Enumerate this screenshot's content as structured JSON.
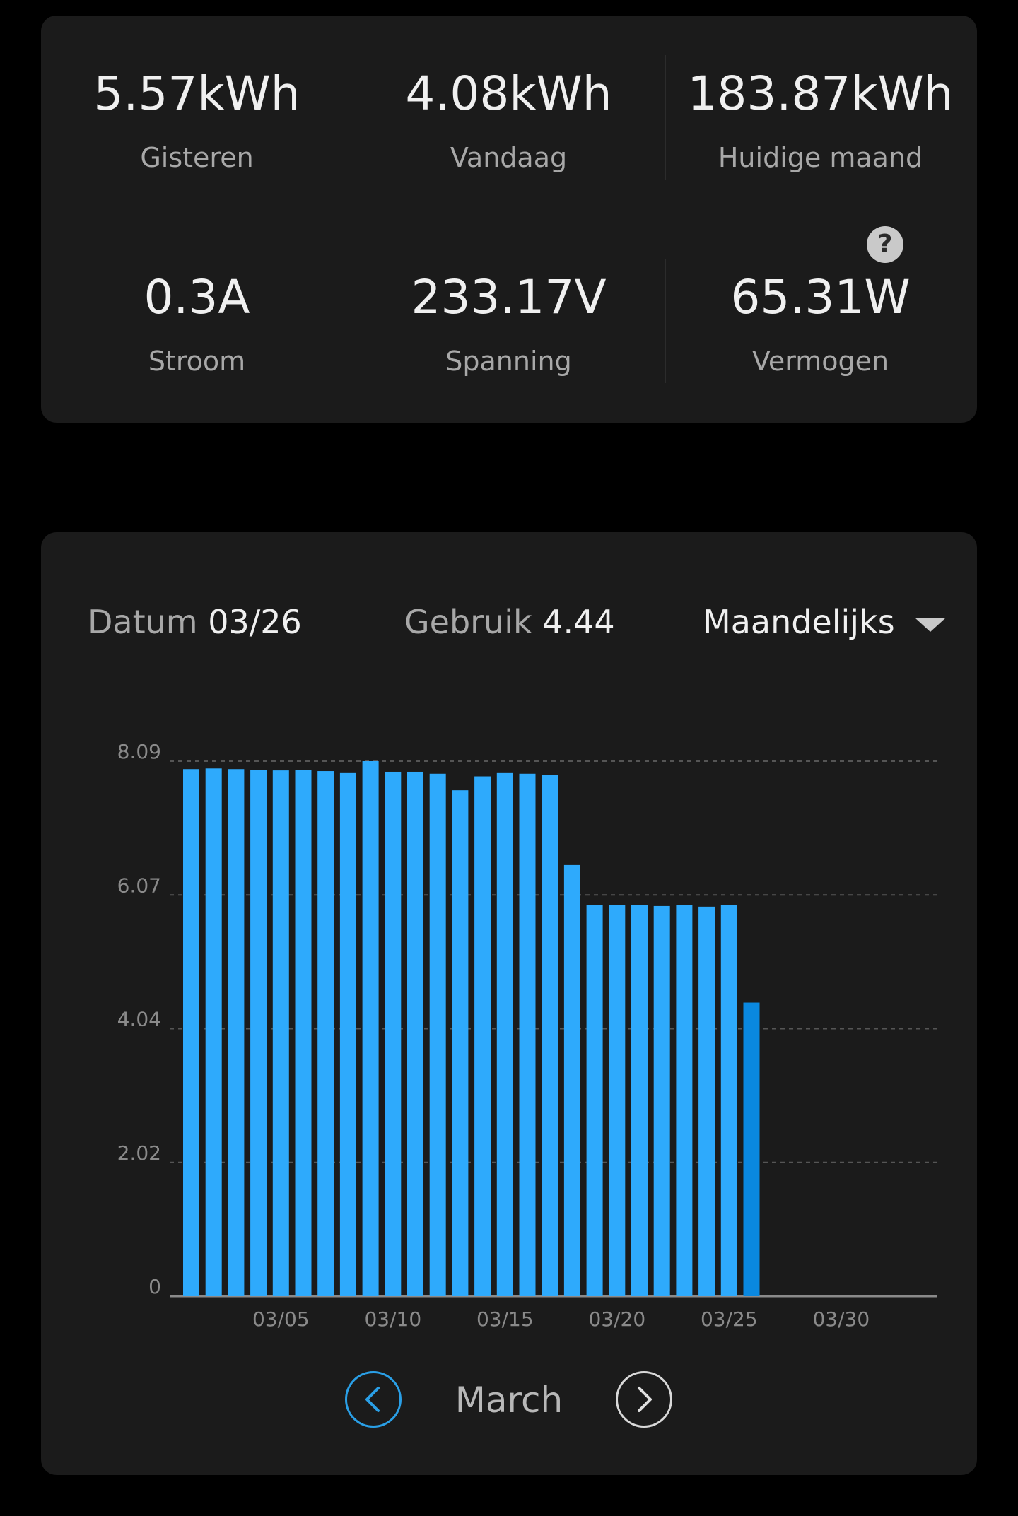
{
  "stats": {
    "yesterday": {
      "value": "5.57kWh",
      "label": "Gisteren"
    },
    "today": {
      "value": "4.08kWh",
      "label": "Vandaag"
    },
    "month": {
      "value": "183.87kWh",
      "label": "Huidige maand"
    },
    "current": {
      "value": "0.3A",
      "label": "Stroom"
    },
    "voltage": {
      "value": "233.17V",
      "label": "Spanning"
    },
    "power": {
      "value": "65.31W",
      "label": "Vermogen"
    },
    "help_label": "?"
  },
  "chart_header": {
    "date_label": "Datum",
    "date_value": "03/26",
    "usage_label": "Gebruik",
    "usage_value": "4.44",
    "period": "Maandelijks"
  },
  "nav": {
    "month": "March",
    "prev_icon": "chevron-left-icon",
    "next_icon": "chevron-right-icon"
  },
  "colors": {
    "bar": "#2eaafc",
    "bar_selected": "#0a88e0",
    "grid": "#555555",
    "axis": "#8a8a8a"
  },
  "chart_data": {
    "type": "bar",
    "y_ticks": [
      "0",
      "2.02",
      "4.04",
      "6.07",
      "8.09"
    ],
    "x_ticks": [
      "03/05",
      "03/10",
      "03/15",
      "03/20",
      "03/25",
      "03/30"
    ],
    "ylim": [
      0,
      8.09
    ],
    "days_in_month": 31,
    "selected_day": 26,
    "categories": [
      "03/01",
      "03/02",
      "03/03",
      "03/04",
      "03/05",
      "03/06",
      "03/07",
      "03/08",
      "03/09",
      "03/10",
      "03/11",
      "03/12",
      "03/13",
      "03/14",
      "03/15",
      "03/16",
      "03/17",
      "03/18",
      "03/19",
      "03/20",
      "03/21",
      "03/22",
      "03/23",
      "03/24",
      "03/25",
      "03/26"
    ],
    "values": [
      7.97,
      7.98,
      7.97,
      7.96,
      7.95,
      7.96,
      7.94,
      7.91,
      8.09,
      7.93,
      7.93,
      7.9,
      7.65,
      7.86,
      7.91,
      7.9,
      7.88,
      6.52,
      5.91,
      5.91,
      5.92,
      5.9,
      5.91,
      5.89,
      5.91,
      4.44
    ]
  }
}
